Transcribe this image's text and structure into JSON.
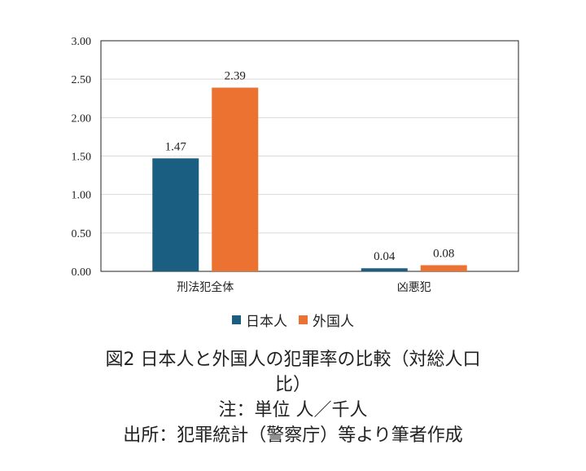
{
  "colors": {
    "series1": "#1a5e82",
    "series2": "#ec7232",
    "grid": "#d9d9d9",
    "frame": "#222222"
  },
  "chart_data": {
    "type": "bar",
    "categories": [
      "刑法犯全体",
      "凶悪犯"
    ],
    "series": [
      {
        "name": "日本人",
        "values": [
          1.47,
          0.04
        ],
        "labels": [
          "1.47",
          "0.04"
        ]
      },
      {
        "name": "外国人",
        "values": [
          2.39,
          0.08
        ],
        "labels": [
          "2.39",
          "0.08"
        ]
      }
    ],
    "ylim": [
      0,
      3
    ],
    "yticks": [
      0,
      0.5,
      1,
      1.5,
      2,
      2.5,
      3
    ],
    "ytick_labels": [
      "0.00",
      "0.50",
      "1.00",
      "1.50",
      "2.00",
      "2.50",
      "3.00"
    ],
    "grid": true,
    "legend_position": "bottom"
  },
  "caption": {
    "line1": "図2 日本人と外国人の犯罪率の比較（対総人口",
    "line2": "比）",
    "line3": "注：単位 人／千人",
    "line4": "出所：犯罪統計（警察庁）等より筆者作成"
  }
}
